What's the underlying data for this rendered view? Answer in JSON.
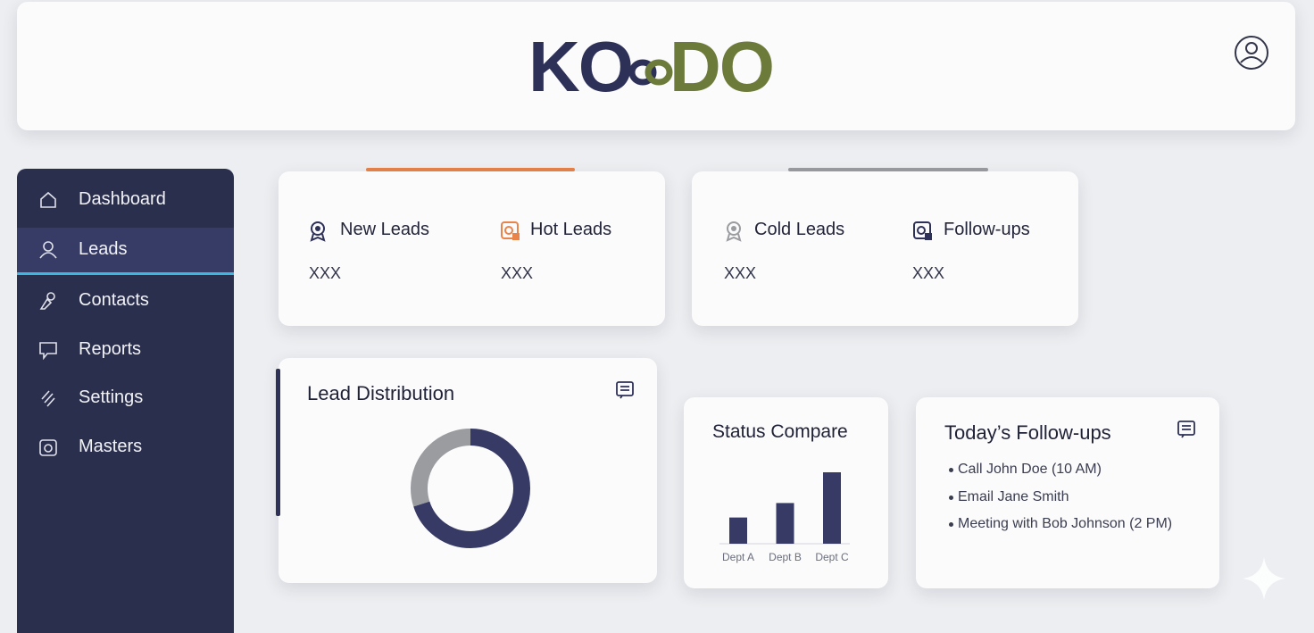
{
  "header": {
    "logo": {
      "left": "KO",
      "right": "DO"
    }
  },
  "sidebar": {
    "items": [
      "Dashboard",
      "Leads",
      "Contacts",
      "Reports",
      "Settings",
      "Masters"
    ],
    "active": "Leads"
  },
  "stats": [
    {
      "label": "New Leads",
      "value": "XXX"
    },
    {
      "label": "Hot Leads",
      "value": "XXX"
    },
    {
      "label": "Cold Leads",
      "value": "XXX"
    },
    {
      "label": "Follow-ups",
      "value": "XXX"
    }
  ],
  "lead_distribution": {
    "title": "Lead Distribution",
    "type": "pie",
    "values": [
      70,
      30
    ],
    "colors": [
      "#363a64",
      "#9a9ca0"
    ]
  },
  "status_compare": {
    "title": "Status Compare",
    "type": "bar",
    "categories": [
      "Dept A",
      "Dept B",
      "Dept C"
    ],
    "values": [
      29,
      45,
      79
    ],
    "color": "#363a64"
  },
  "followups": {
    "title": "Today’s Follow-ups",
    "items": [
      "Call John Doe (10 AM)",
      "Email Jane Smith",
      "Meeting with Bob Johnson (2 PM)"
    ]
  }
}
